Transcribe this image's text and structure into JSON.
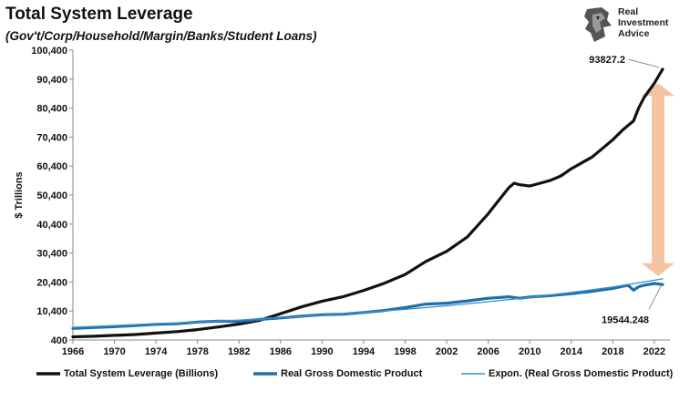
{
  "title": "Total System Leverage",
  "subtitle": "(Gov't/Corp/Household/Margin/Banks/Student Loans)",
  "logo": {
    "lines": [
      "Real",
      "Investment",
      "Advice"
    ],
    "icon": "lion-head-icon"
  },
  "colors": {
    "leverage": "#111111",
    "gdp": "#1f6fa8",
    "trend": "#3a8fd0",
    "arrow": "#f5c4a0"
  },
  "chart_data": {
    "type": "line",
    "ylabel": "$ Trillions",
    "ylim": [
      400,
      100400
    ],
    "xlim": [
      1966,
      2023.5
    ],
    "yticks": [
      "400",
      "10,400",
      "20,400",
      "30,400",
      "40,400",
      "50,400",
      "60,400",
      "70,400",
      "80,400",
      "90,400",
      "100,400"
    ],
    "xticks": [
      "1966",
      "1970",
      "1974",
      "1978",
      "1982",
      "1986",
      "1990",
      "1994",
      "1998",
      "2002",
      "2006",
      "2010",
      "2014",
      "2018",
      "2022"
    ],
    "grid": false,
    "legend_position": "bottom",
    "series": [
      {
        "name": "Total System Leverage (Billions)",
        "x": [
          1966,
          1968,
          1970,
          1972,
          1974,
          1976,
          1978,
          1980,
          1982,
          1984,
          1986,
          1988,
          1990,
          1992,
          1994,
          1996,
          1998,
          2000,
          2002,
          2004,
          2006,
          2007,
          2008,
          2008.5,
          2009,
          2010,
          2011,
          2012,
          2013,
          2014,
          2015,
          2016,
          2017,
          2018,
          2019,
          2019.5,
          2020,
          2020.5,
          2021,
          2022,
          2022.8
        ],
        "y": [
          1500,
          1700,
          2000,
          2300,
          2800,
          3300,
          4000,
          4900,
          5900,
          7200,
          9500,
          11800,
          13800,
          15300,
          17500,
          20000,
          23000,
          27500,
          31000,
          36000,
          44000,
          48500,
          53000,
          54500,
          54000,
          53500,
          54500,
          55500,
          57000,
          59500,
          61500,
          63500,
          66500,
          69500,
          73000,
          74500,
          76000,
          80500,
          84000,
          89000,
          93827.2
        ]
      },
      {
        "name": "Real Gross Domestic Product",
        "x": [
          1966,
          1968,
          1970,
          1972,
          1974,
          1976,
          1978,
          1980,
          1982,
          1984,
          1986,
          1988,
          1990,
          1992,
          1994,
          1996,
          1998,
          2000,
          2002,
          2004,
          2006,
          2008,
          2009,
          2010,
          2012,
          2014,
          2016,
          2018,
          2019,
          2019.5,
          2020,
          2020.5,
          2021,
          2022,
          2022.8
        ],
        "y": [
          4400,
          4700,
          5000,
          5400,
          5800,
          6000,
          6600,
          6900,
          6800,
          7500,
          8000,
          8600,
          9100,
          9300,
          9900,
          10600,
          11600,
          12800,
          13100,
          13900,
          14800,
          15300,
          14800,
          15200,
          15700,
          16400,
          17200,
          18200,
          19000,
          19200,
          17600,
          18800,
          19300,
          19900,
          19544.248
        ]
      },
      {
        "name": "Expon. (Real Gross Domestic Product)",
        "x": [
          1966,
          1970,
          1974,
          1978,
          1982,
          1986,
          1990,
          1994,
          1998,
          2002,
          2006,
          2010,
          2014,
          2018,
          2022.8
        ],
        "y": [
          4800,
          5400,
          6000,
          6600,
          7300,
          8100,
          8900,
          9900,
          11000,
          12200,
          13600,
          15100,
          16800,
          18700,
          21500
        ]
      }
    ],
    "annotations": [
      {
        "text": "93827.2",
        "x": 2022.8,
        "y": 93827.2
      },
      {
        "text": "19544.248",
        "x": 2022.8,
        "y": 19544.248
      }
    ]
  }
}
